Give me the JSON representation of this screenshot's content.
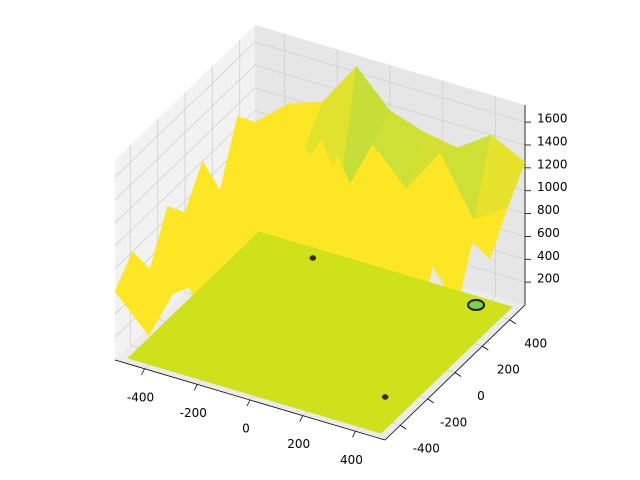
{
  "chart_data": {
    "type": "surface",
    "x": [
      -512,
      -384,
      -256,
      -128,
      0,
      128,
      256,
      384,
      512
    ],
    "y": [
      -512,
      -384,
      -256,
      -128,
      0,
      128,
      256,
      384,
      512
    ],
    "z": [
      [
        600,
        300,
        900,
        500,
        1100,
        400,
        800,
        350,
        1200
      ],
      [
        800,
        500,
        700,
        300,
        900,
        600,
        1000,
        500,
        1100
      ],
      [
        500,
        900,
        400,
        1000,
        600,
        1200,
        500,
        900,
        700
      ],
      [
        900,
        400,
        1100,
        700,
        1300,
        500,
        1000,
        400,
        1300
      ],
      [
        700,
        1000,
        500,
        900,
        400,
        1100,
        700,
        1200,
        500
      ],
      [
        1000,
        600,
        1200,
        500,
        1400,
        800,
        1100,
        600,
        1000
      ],
      [
        600,
        1100,
        800,
        1300,
        700,
        1000,
        500,
        900,
        700
      ],
      [
        1100,
        800,
        1000,
        600,
        1200,
        900,
        1300,
        800,
        1000
      ],
      [
        900,
        1150,
        1250,
        1650,
        1350,
        1250,
        1200,
        1400,
        1250
      ]
    ],
    "xlim": [
      -512,
      512
    ],
    "ylim": [
      -512,
      512
    ],
    "zlim": [
      0,
      1750
    ],
    "xticks": [
      -400,
      -200,
      0,
      200,
      400
    ],
    "yticks": [
      -400,
      -200,
      0,
      200,
      400
    ],
    "zticks": [
      200,
      400,
      600,
      800,
      1000,
      1200,
      1400,
      1600
    ],
    "colors": [
      "#fde725",
      "#7ad151",
      "#440154"
    ],
    "plane_color": "#cfe11a",
    "points": {
      "x": [
        -245,
        383,
        370
      ],
      "y": [
        420,
        -262,
        428
      ],
      "colors": [
        "#2d2d2d",
        "#2d2d2d",
        "#7ad151"
      ]
    }
  }
}
